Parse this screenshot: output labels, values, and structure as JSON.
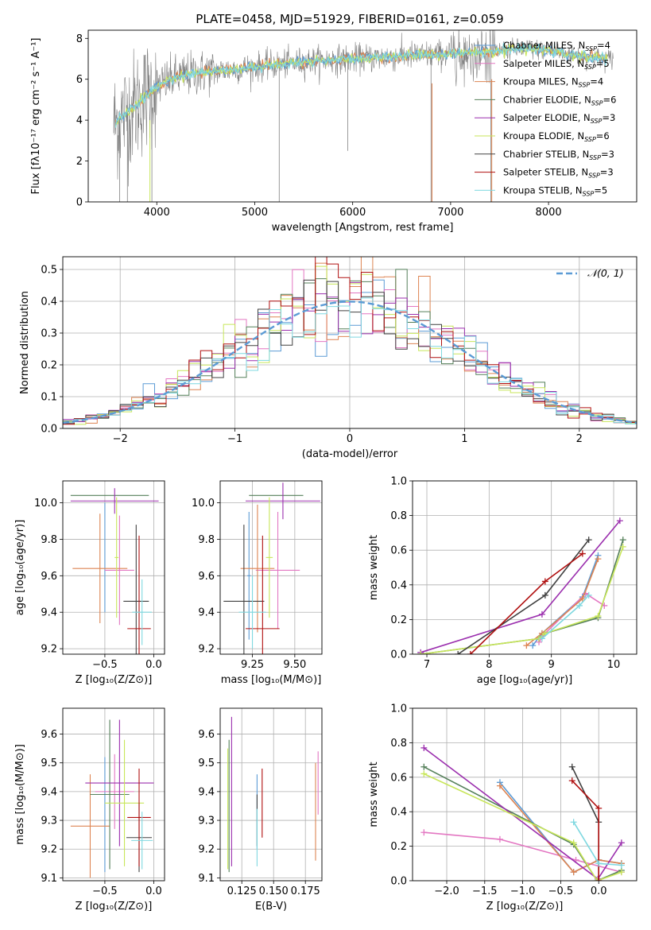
{
  "figure": {
    "title": "PLATE=0458, MJD=51929, FIBERID=0161, z=0.059"
  },
  "colors": {
    "chabrier_miles": "#5b9bd5",
    "salpeter_miles": "#e377c2",
    "kroupa_miles": "#dd8452",
    "chabrier_elodie": "#55805a",
    "salpeter_elodie": "#9b2fae",
    "kroupa_elodie": "#c8e65a",
    "chabrier_stelib": "#404040",
    "salpeter_stelib": "#b01010",
    "kroupa_stelib": "#7fd8e0",
    "data_spectrum": "#808080",
    "grid": "#b0b0b0"
  },
  "chart_data": [
    {
      "id": "spectrum",
      "type": "line",
      "xlabel": "wavelength [Angstrom, rest frame]",
      "ylabel": "Flux [fλ10⁻¹⁷ erg cm⁻² s⁻¹ A⁻¹]",
      "xlim": [
        3300,
        8900
      ],
      "ylim": [
        0,
        8.4
      ],
      "xticks": [
        4000,
        5000,
        6000,
        7000,
        8000
      ],
      "yticks": [
        0,
        2,
        4,
        6,
        8
      ],
      "grid": false,
      "legend_position": "right",
      "continuum": {
        "x": [
          3560,
          3650,
          3750,
          3850,
          3950,
          4050,
          4200,
          4400,
          4600,
          4800,
          5000,
          5200,
          5400,
          5600,
          5800,
          6000,
          6200,
          6400,
          6600,
          6800,
          7000,
          7200,
          7400,
          7600,
          7800,
          8000,
          8200,
          8400,
          8600
        ],
        "y": [
          3.8,
          4.2,
          4.6,
          5.0,
          5.4,
          5.8,
          6.1,
          6.3,
          6.4,
          6.5,
          6.6,
          6.7,
          6.8,
          6.9,
          6.95,
          7.0,
          7.05,
          7.1,
          7.15,
          7.2,
          7.25,
          7.3,
          7.35,
          7.45,
          7.5,
          7.4,
          7.2,
          7.1,
          7.0
        ]
      },
      "series": [
        {
          "name": "Chabrier MILES, N",
          "sub": "SSP",
          "suffix": "=4",
          "color_key": "chabrier_miles"
        },
        {
          "name": "Salpeter MILES, N",
          "sub": "SSP",
          "suffix": "=5",
          "color_key": "salpeter_miles"
        },
        {
          "name": "Kroupa MILES, N",
          "sub": "SSP",
          "suffix": "=4",
          "color_key": "kroupa_miles"
        },
        {
          "name": "Chabrier ELODIE, N",
          "sub": "SSP",
          "suffix": "=6",
          "color_key": "chabrier_elodie"
        },
        {
          "name": "Salpeter ELODIE, N",
          "sub": "SSP",
          "suffix": "=3",
          "color_key": "salpeter_elodie"
        },
        {
          "name": "Kroupa ELODIE, N",
          "sub": "SSP",
          "suffix": "=6",
          "color_key": "kroupa_elodie"
        },
        {
          "name": "Chabrier STELIB, N",
          "sub": "SSP",
          "suffix": "=3",
          "color_key": "chabrier_stelib"
        },
        {
          "name": "Salpeter STELIB, N",
          "sub": "SSP",
          "suffix": "=3",
          "color_key": "salpeter_stelib"
        },
        {
          "name": "Kroupa STELIB, N",
          "sub": "SSP",
          "suffix": "=5",
          "color_key": "kroupa_stelib"
        }
      ]
    },
    {
      "id": "residuals",
      "type": "area",
      "xlabel": "(data-model)/error",
      "ylabel": "Normed distribution",
      "xlim": [
        -2.5,
        2.5
      ],
      "ylim": [
        0,
        0.54
      ],
      "xticks": [
        -2,
        -1,
        0,
        1,
        2
      ],
      "yticks": [
        0.0,
        0.1,
        0.2,
        0.3,
        0.4,
        0.5
      ],
      "grid": true,
      "legend_position": "top-right",
      "gaussian_label": "𝒩(0, 1)",
      "bin_width": 0.1
    },
    {
      "id": "age_vs_Z",
      "type": "scatter",
      "xlabel": "Z [log₁₀(Z/Z⊙)]",
      "ylabel": "age  [log₁₀(age/yr)]",
      "xlim": [
        -0.93,
        0.11
      ],
      "ylim": [
        9.17,
        10.12
      ],
      "xticks": [
        -0.5,
        0.0
      ],
      "yticks": [
        9.2,
        9.4,
        9.6,
        9.8,
        10.0
      ],
      "grid": true,
      "points": [
        {
          "color_key": "chabrier_miles",
          "x": -0.5,
          "xerr": 0.0,
          "y": 9.7,
          "yerr": 0.3
        },
        {
          "color_key": "salpeter_miles",
          "x": -0.35,
          "xerr": 0.15,
          "y": 9.63,
          "yerr": 0.3
        },
        {
          "color_key": "kroupa_miles",
          "x": -0.55,
          "xerr": 0.28,
          "y": 9.64,
          "yerr": 0.3
        },
        {
          "color_key": "chabrier_elodie",
          "x": -0.45,
          "xerr": 0.4,
          "y": 10.04,
          "yerr": 0.0
        },
        {
          "color_key": "salpeter_elodie",
          "x": -0.4,
          "xerr": 0.45,
          "y": 10.01,
          "yerr": 0.07
        },
        {
          "color_key": "kroupa_elodie",
          "x": -0.38,
          "xerr": 0.02,
          "y": 9.7,
          "yerr": 0.33
        },
        {
          "color_key": "chabrier_stelib",
          "x": -0.18,
          "xerr": 0.13,
          "y": 9.46,
          "yerr": 0.42
        },
        {
          "color_key": "salpeter_stelib",
          "x": -0.15,
          "xerr": 0.12,
          "y": 9.31,
          "yerr": 0.51
        },
        {
          "color_key": "kroupa_stelib",
          "x": -0.12,
          "xerr": 0.1,
          "y": 9.4,
          "yerr": 0.18
        }
      ]
    },
    {
      "id": "age_vs_mass",
      "type": "scatter",
      "xlabel": "mass [log₁₀(M/M⊙)]",
      "ylabel": "",
      "xlim": [
        9.06,
        9.66
      ],
      "ylim": [
        9.17,
        10.12
      ],
      "xticks": [
        9.25,
        9.5
      ],
      "yticks": [
        9.2,
        9.4,
        9.6,
        9.8,
        10.0
      ],
      "grid": true,
      "points": [
        {
          "color_key": "chabrier_miles",
          "x": 9.23,
          "xerr": 0.01,
          "y": 9.6,
          "yerr": 0.35
        },
        {
          "color_key": "salpeter_miles",
          "x": 9.4,
          "xerr": 0.13,
          "y": 9.63,
          "yerr": 0.32
        },
        {
          "color_key": "kroupa_miles",
          "x": 9.28,
          "xerr": 0.1,
          "y": 9.64,
          "yerr": 0.35
        },
        {
          "color_key": "chabrier_elodie",
          "x": 9.39,
          "xerr": 0.16,
          "y": 10.04,
          "yerr": 0.0
        },
        {
          "color_key": "salpeter_elodie",
          "x": 9.43,
          "xerr": 0.22,
          "y": 10.01,
          "yerr": 0.1
        },
        {
          "color_key": "kroupa_elodie",
          "x": 9.35,
          "xerr": 0.02,
          "y": 9.7,
          "yerr": 0.33
        },
        {
          "color_key": "chabrier_stelib",
          "x": 9.2,
          "xerr": 0.12,
          "y": 9.46,
          "yerr": 0.42
        },
        {
          "color_key": "salpeter_stelib",
          "x": 9.31,
          "xerr": 0.1,
          "y": 9.31,
          "yerr": 0.51
        },
        {
          "color_key": "kroupa_stelib",
          "x": 9.25,
          "xerr": 0.08,
          "y": 9.4,
          "yerr": 0.2
        }
      ]
    },
    {
      "id": "mass_weight_vs_age",
      "type": "line",
      "xlabel": "age  [log₁₀(age/yr)]",
      "ylabel": "mass weight",
      "xlim": [
        6.77,
        10.37
      ],
      "ylim": [
        0,
        1.0
      ],
      "xticks": [
        7,
        8,
        9,
        10
      ],
      "yticks": [
        0.0,
        0.2,
        0.4,
        0.6,
        0.8,
        1.0
      ],
      "grid": true,
      "series": [
        {
          "color_key": "chabrier_miles",
          "x": [
            8.7,
            8.85,
            9.5,
            9.75
          ],
          "y": [
            0.05,
            0.12,
            0.33,
            0.57
          ]
        },
        {
          "color_key": "salpeter_miles",
          "x": [
            8.8,
            8.9,
            9.55,
            9.85
          ],
          "y": [
            0.07,
            0.12,
            0.35,
            0.28
          ]
        },
        {
          "color_key": "kroupa_miles",
          "x": [
            8.6,
            8.85,
            9.5,
            9.75
          ],
          "y": [
            0.05,
            0.12,
            0.32,
            0.55
          ]
        },
        {
          "color_key": "chabrier_elodie",
          "x": [
            6.9,
            8.8,
            8.9,
            9.75,
            10.15
          ],
          "y": [
            0.0,
            0.09,
            0.12,
            0.21,
            0.66
          ]
        },
        {
          "color_key": "salpeter_elodie",
          "x": [
            6.9,
            8.85,
            10.1
          ],
          "y": [
            0.01,
            0.23,
            0.77
          ]
        },
        {
          "color_key": "kroupa_elodie",
          "x": [
            6.9,
            8.8,
            8.9,
            9.75,
            10.15
          ],
          "y": [
            0.0,
            0.09,
            0.12,
            0.22,
            0.62
          ]
        },
        {
          "color_key": "chabrier_stelib",
          "x": [
            7.5,
            8.9,
            9.6
          ],
          "y": [
            0.0,
            0.34,
            0.66
          ]
        },
        {
          "color_key": "salpeter_stelib",
          "x": [
            7.7,
            8.9,
            9.5
          ],
          "y": [
            0.0,
            0.42,
            0.58
          ]
        },
        {
          "color_key": "kroupa_stelib",
          "x": [
            8.85,
            9.45,
            9.6
          ],
          "y": [
            0.09,
            0.28,
            0.34
          ]
        }
      ]
    },
    {
      "id": "mass_vs_Z",
      "type": "scatter",
      "xlabel": "Z [log₁₀(Z/Z⊙)]",
      "ylabel": "mass [log₁₀(M/M⊙)]",
      "xlim": [
        -0.93,
        0.11
      ],
      "ylim": [
        9.09,
        9.69
      ],
      "xticks": [
        -0.5,
        0.0
      ],
      "yticks": [
        9.1,
        9.2,
        9.3,
        9.4,
        9.5,
        9.6
      ],
      "grid": true,
      "points": [
        {
          "color_key": "chabrier_miles",
          "x": -0.5,
          "xerr": 0.0,
          "y": 9.32,
          "yerr": 0.2
        },
        {
          "color_key": "salpeter_miles",
          "x": -0.4,
          "xerr": 0.2,
          "y": 9.4,
          "yerr": 0.13
        },
        {
          "color_key": "kroupa_miles",
          "x": -0.65,
          "xerr": 0.2,
          "y": 9.28,
          "yerr": 0.18
        },
        {
          "color_key": "chabrier_elodie",
          "x": -0.45,
          "xerr": 0.2,
          "y": 9.39,
          "yerr": 0.26
        },
        {
          "color_key": "salpeter_elodie",
          "x": -0.35,
          "xerr": 0.35,
          "y": 9.43,
          "yerr": 0.22
        },
        {
          "color_key": "kroupa_elodie",
          "x": -0.3,
          "xerr": 0.2,
          "y": 9.36,
          "yerr": 0.22
        },
        {
          "color_key": "chabrier_stelib",
          "x": -0.15,
          "xerr": 0.13,
          "y": 9.24,
          "yerr": 0.12
        },
        {
          "color_key": "salpeter_stelib",
          "x": -0.15,
          "xerr": 0.12,
          "y": 9.31,
          "yerr": 0.17
        },
        {
          "color_key": "kroupa_stelib",
          "x": -0.12,
          "xerr": 0.11,
          "y": 9.23,
          "yerr": 0.1
        }
      ]
    },
    {
      "id": "mass_vs_ebv",
      "type": "scatter",
      "xlabel": "E(B-V)",
      "ylabel": "",
      "xlim": [
        0.108,
        0.188
      ],
      "ylim": [
        9.09,
        9.69
      ],
      "xticks": [
        0.125,
        0.15,
        0.175
      ],
      "yticks": [
        9.1,
        9.2,
        9.3,
        9.4,
        9.5,
        9.6
      ],
      "grid": true,
      "points": [
        {
          "color_key": "chabrier_miles",
          "x": 0.137,
          "xerr": 0.0,
          "y": 9.33,
          "yerr": 0.13
        },
        {
          "color_key": "salpeter_miles",
          "x": 0.185,
          "xerr": 0.0,
          "y": 9.43,
          "yerr": 0.11
        },
        {
          "color_key": "kroupa_miles",
          "x": 0.183,
          "xerr": 0.0,
          "y": 9.33,
          "yerr": 0.17
        },
        {
          "color_key": "chabrier_elodie",
          "x": 0.115,
          "xerr": 0.0,
          "y": 9.35,
          "yerr": 0.23
        },
        {
          "color_key": "salpeter_elodie",
          "x": 0.117,
          "xerr": 0.0,
          "y": 9.4,
          "yerr": 0.26
        },
        {
          "color_key": "kroupa_elodie",
          "x": 0.114,
          "xerr": 0.0,
          "y": 9.34,
          "yerr": 0.21
        },
        {
          "color_key": "chabrier_stelib",
          "x": 0.137,
          "xerr": 0.0,
          "y": 9.3,
          "yerr": 0.09
        },
        {
          "color_key": "salpeter_stelib",
          "x": 0.141,
          "xerr": 0.0,
          "y": 9.36,
          "yerr": 0.12
        },
        {
          "color_key": "kroupa_stelib",
          "x": 0.137,
          "xerr": 0.0,
          "y": 9.24,
          "yerr": 0.1
        }
      ]
    },
    {
      "id": "mass_weight_vs_Z",
      "type": "line",
      "xlabel": "Z [log₁₀(Z/Z⊙)]",
      "ylabel": "mass weight",
      "xlim": [
        -2.45,
        0.5
      ],
      "ylim": [
        0,
        1.0
      ],
      "xticks": [
        -2.0,
        -1.5,
        -1.0,
        -0.5,
        0.0
      ],
      "yticks": [
        0.0,
        0.2,
        0.4,
        0.6,
        0.8,
        1.0
      ],
      "grid": true,
      "series": [
        {
          "color_key": "chabrier_miles",
          "x": [
            -1.3,
            -0.33,
            0.0,
            0.3
          ],
          "y": [
            0.57,
            0.05,
            0.12,
            0.1
          ]
        },
        {
          "color_key": "salpeter_miles",
          "x": [
            -2.3,
            -1.3,
            -0.3,
            0.3
          ],
          "y": [
            0.28,
            0.24,
            0.12,
            0.05
          ]
        },
        {
          "color_key": "kroupa_miles",
          "x": [
            -1.3,
            -0.33,
            0.0,
            0.3
          ],
          "y": [
            0.55,
            0.05,
            0.12,
            0.1
          ]
        },
        {
          "color_key": "chabrier_elodie",
          "x": [
            -2.3,
            -0.33,
            -0.02,
            0.3
          ],
          "y": [
            0.66,
            0.21,
            0.0,
            0.06
          ]
        },
        {
          "color_key": "salpeter_elodie",
          "x": [
            -2.3,
            -0.01,
            0.3
          ],
          "y": [
            0.77,
            0.01,
            0.22
          ]
        },
        {
          "color_key": "kroupa_elodie",
          "x": [
            -2.3,
            -0.33,
            -0.02,
            0.3
          ],
          "y": [
            0.62,
            0.22,
            0.0,
            0.05
          ]
        },
        {
          "color_key": "chabrier_stelib",
          "x": [
            -0.35,
            0.0,
            0.0
          ],
          "y": [
            0.66,
            0.34,
            0.0
          ]
        },
        {
          "color_key": "salpeter_stelib",
          "x": [
            -0.35,
            0.0,
            0.0
          ],
          "y": [
            0.58,
            0.42,
            0.0
          ]
        },
        {
          "color_key": "kroupa_stelib",
          "x": [
            -0.33,
            0.0,
            0.3
          ],
          "y": [
            0.34,
            0.1,
            0.09
          ]
        }
      ]
    }
  ]
}
